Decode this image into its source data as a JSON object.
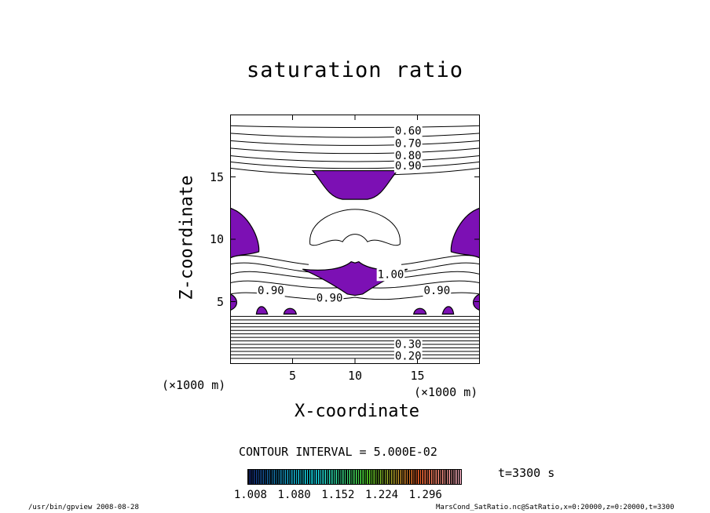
{
  "chart_data": {
    "type": "contour",
    "title": "saturation ratio",
    "xlabel": "X-coordinate",
    "ylabel": "Z-coordinate",
    "x_unit_label": "(×1000 m)",
    "z_unit_label": "(×1000 m)",
    "xlim": [
      0,
      20
    ],
    "ylim": [
      0,
      20
    ],
    "x_ticks": [
      5,
      10,
      15
    ],
    "y_ticks": [
      5,
      10,
      15
    ],
    "contour_interval_text": "CONTOUR INTERVAL = 5.000E-02",
    "contour_labels_upper": [
      "0.60",
      "0.70",
      "0.80",
      "0.90"
    ],
    "contour_labels_middle": [
      "0.90",
      "0.90",
      "1.00",
      "0.90"
    ],
    "contour_labels_lower": [
      "0.30",
      "0.20"
    ],
    "shading_threshold": 1.008,
    "shading_color": "#7c10b4",
    "colorbar_ticks": [
      "1.008",
      "1.080",
      "1.152",
      "1.224",
      "1.296"
    ],
    "time_label": "t=3300 s"
  },
  "footer": {
    "left": "/usr/bin/gpview  2008-08-28",
    "right": "MarsCond_SatRatio.nc@SatRatio,x=0:20000,z=0:20000,t=3300"
  }
}
